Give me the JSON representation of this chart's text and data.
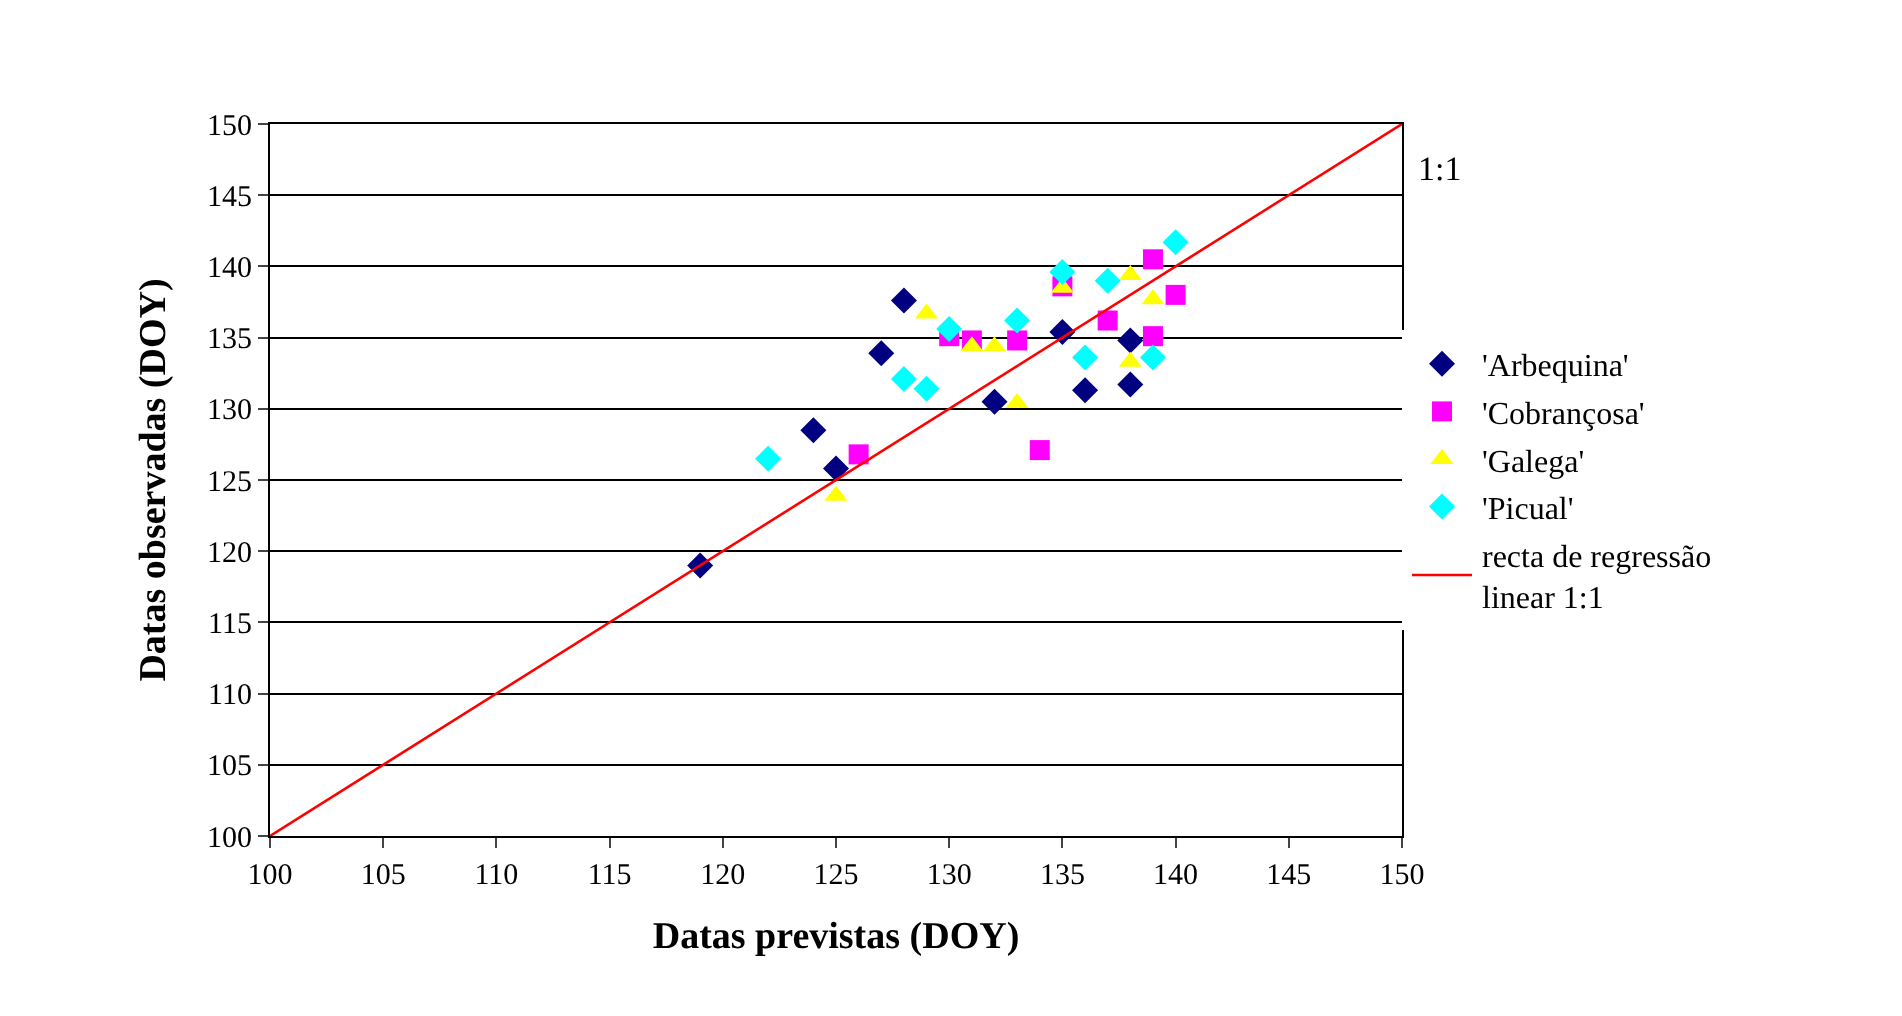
{
  "chart_data": {
    "type": "scatter",
    "xlabel": "Datas previstas (DOY)",
    "ylabel": "Datas observadas (DOY)",
    "xlim": [
      100,
      150
    ],
    "xticks": [
      100,
      105,
      110,
      115,
      120,
      125,
      130,
      135,
      140,
      145,
      150
    ],
    "ylim": [
      100,
      150
    ],
    "yticks": [
      100,
      105,
      110,
      115,
      120,
      125,
      130,
      135,
      140,
      145,
      150
    ],
    "grid": "y",
    "legend": "right",
    "annotations": [
      "1:1"
    ],
    "series": [
      {
        "name": "'Arbequina'",
        "color": "#000080",
        "marker": "diamond",
        "x": [
          119,
          124,
          125,
          127,
          128,
          132,
          135,
          136,
          138,
          138
        ],
        "values": [
          119,
          128.5,
          125.8,
          133.9,
          137.6,
          130.5,
          135.4,
          131.3,
          134.8,
          131.7
        ]
      },
      {
        "name": "'Cobrançosa'",
        "color": "#ff00ff",
        "marker": "square",
        "x": [
          126,
          130,
          131,
          133,
          134,
          135,
          137,
          139,
          139,
          140
        ],
        "values": [
          126.8,
          135.1,
          134.8,
          134.8,
          127.1,
          138.6,
          136.2,
          135.1,
          140.5,
          138
        ]
      },
      {
        "name": "'Galega'",
        "color": "#ffff00",
        "marker": "triangle",
        "x": [
          125,
          129,
          131,
          132,
          133,
          135,
          138,
          139,
          138
        ],
        "values": [
          123.9,
          136.7,
          134.4,
          134.4,
          130.4,
          138.5,
          139.4,
          137.7,
          133.3
        ]
      },
      {
        "name": "'Picual'",
        "color": "#00ffff",
        "marker": "diamond",
        "x": [
          122,
          128,
          129,
          130,
          133,
          135,
          137,
          140,
          136,
          139
        ],
        "values": [
          126.5,
          132.1,
          131.4,
          135.6,
          136.2,
          139.6,
          139,
          141.7,
          133.6,
          133.6
        ]
      },
      {
        "name": "recta de regressão\nlinear 1:1",
        "type": "line",
        "color": "#ff0000",
        "marker": "none",
        "x": [
          100,
          150
        ],
        "values": [
          100,
          150
        ]
      }
    ]
  }
}
